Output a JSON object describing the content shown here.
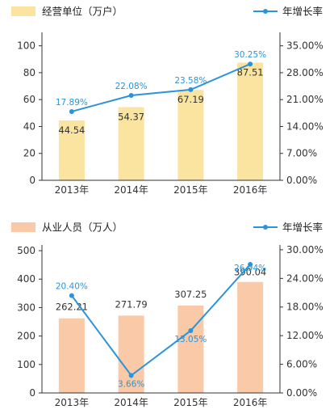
{
  "chart_data": [
    {
      "type": "bar",
      "categories": [
        "2013年",
        "2014年",
        "2015年",
        "2016年"
      ],
      "title": "",
      "xlabel": "",
      "ylabel": "",
      "ylim": [
        0,
        110
      ],
      "y2lim": [
        0,
        0.385
      ],
      "y_ticks": [
        "0",
        "20",
        "40",
        "60",
        "80",
        "100"
      ],
      "y2_ticks": [
        "0.00%",
        "7.00%",
        "14.00%",
        "21.00%",
        "28.00%",
        "35.00%"
      ],
      "legend_position": "top",
      "grid": false,
      "series": [
        {
          "name": "经营单位（万户）",
          "kind": "bar",
          "axis": "left",
          "color": "#fbe3a0",
          "values": [
            44.54,
            54.37,
            67.19,
            87.51
          ],
          "labels": [
            "44.54",
            "54.37",
            "67.19",
            "87.51"
          ]
        },
        {
          "name": "年增长率",
          "kind": "line",
          "axis": "right",
          "color": "#2b94d8",
          "values": [
            0.1789,
            0.2208,
            0.2358,
            0.3025
          ],
          "labels": [
            "17.89%",
            "22.08%",
            "23.58%",
            "30.25%"
          ]
        }
      ]
    },
    {
      "type": "bar",
      "categories": [
        "2013年",
        "2014年",
        "2015年",
        "2016年"
      ],
      "title": "",
      "xlabel": "",
      "ylabel": "",
      "ylim": [
        0,
        520
      ],
      "y2lim": [
        0,
        0.31
      ],
      "y_ticks": [
        "0",
        "100",
        "200",
        "300",
        "400",
        "500"
      ],
      "y2_ticks": [
        "0.00%",
        "6.00%",
        "12.00%",
        "18.00%",
        "24.00%",
        "30.00%"
      ],
      "legend_position": "top",
      "grid": false,
      "series": [
        {
          "name": "从业人员（万人）",
          "kind": "bar",
          "axis": "left",
          "color": "#f9c9a8",
          "values": [
            262.21,
            271.79,
            307.25,
            390.04
          ],
          "labels": [
            "262.21",
            "271.79",
            "307.25",
            "390.04"
          ]
        },
        {
          "name": "年增长率",
          "kind": "line",
          "axis": "right",
          "color": "#2b94d8",
          "values": [
            0.204,
            0.0366,
            0.1305,
            0.2694
          ],
          "labels": [
            "20.40%",
            "3.66%",
            "13.05%",
            "26.94%"
          ]
        }
      ]
    }
  ]
}
